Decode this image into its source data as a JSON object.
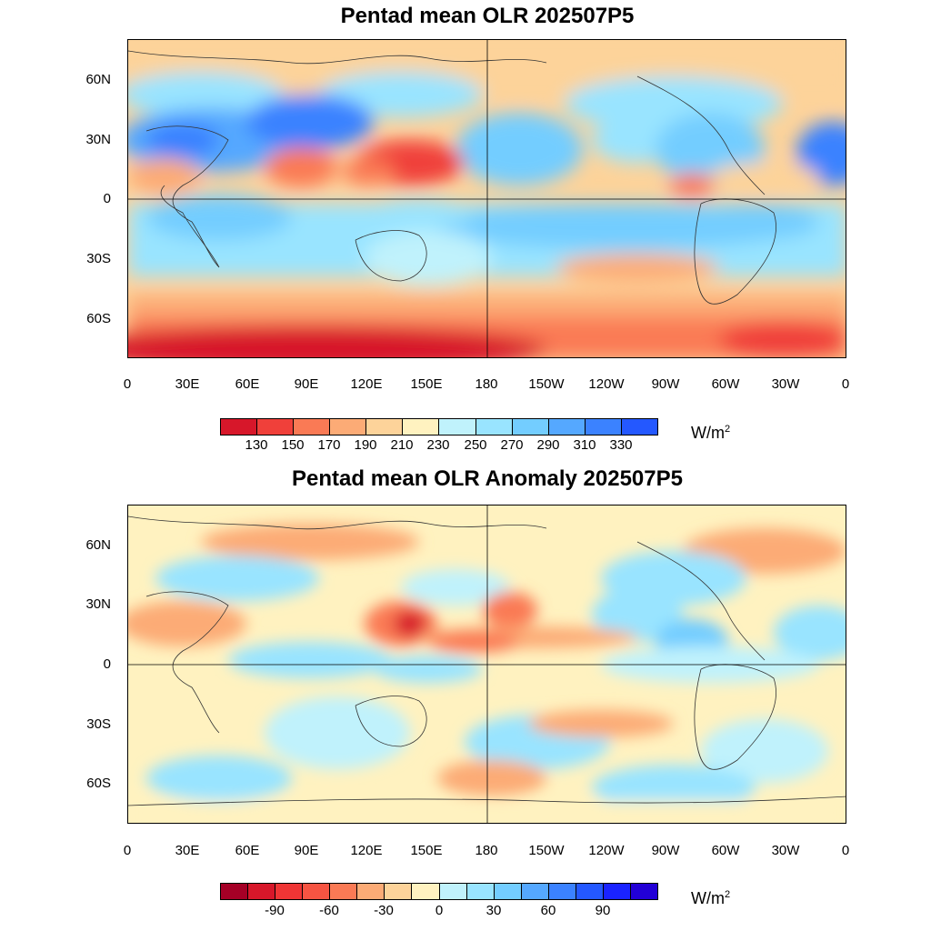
{
  "panels": [
    {
      "title": "Pentad mean OLR 202507P5",
      "ytick_labels": [
        "60N",
        "30N",
        "0",
        "30S",
        "60S"
      ],
      "xtick_labels": [
        "0",
        "30E",
        "60E",
        "90E",
        "120E",
        "150E",
        "180",
        "150W",
        "120W",
        "90W",
        "60W",
        "30W",
        "0"
      ],
      "colorbar": {
        "colors": [
          "#d7172a",
          "#f0403a",
          "#fa7a55",
          "#fcab76",
          "#fdd39a",
          "#fff2c0",
          "#c0f2fc",
          "#99e4ff",
          "#73cdff",
          "#55a8ff",
          "#3b82ff",
          "#2458ff"
        ],
        "labels": [
          "130",
          "150",
          "170",
          "190",
          "210",
          "230",
          "250",
          "270",
          "290",
          "310",
          "330"
        ],
        "units": "W/m",
        "units_sup": "2"
      }
    },
    {
      "title": "Pentad mean OLR Anomaly 202507P5",
      "ytick_labels": [
        "60N",
        "30N",
        "0",
        "30S",
        "60S"
      ],
      "xtick_labels": [
        "0",
        "30E",
        "60E",
        "90E",
        "120E",
        "150E",
        "180",
        "150W",
        "120W",
        "90W",
        "60W",
        "30W",
        "0"
      ],
      "colorbar": {
        "colors": [
          "#a50026",
          "#d7172a",
          "#ef3535",
          "#f65442",
          "#fa7a55",
          "#fcab76",
          "#fdd39a",
          "#fff2c0",
          "#c0f2fc",
          "#99e4ff",
          "#73cdff",
          "#55a8ff",
          "#3b82ff",
          "#2458ff",
          "#1a23ff",
          "#2200d6"
        ],
        "labels": [
          "-90",
          "-60",
          "-30",
          "0",
          "30",
          "60",
          "90"
        ],
        "units": "W/m",
        "units_sup": "2"
      }
    }
  ]
}
